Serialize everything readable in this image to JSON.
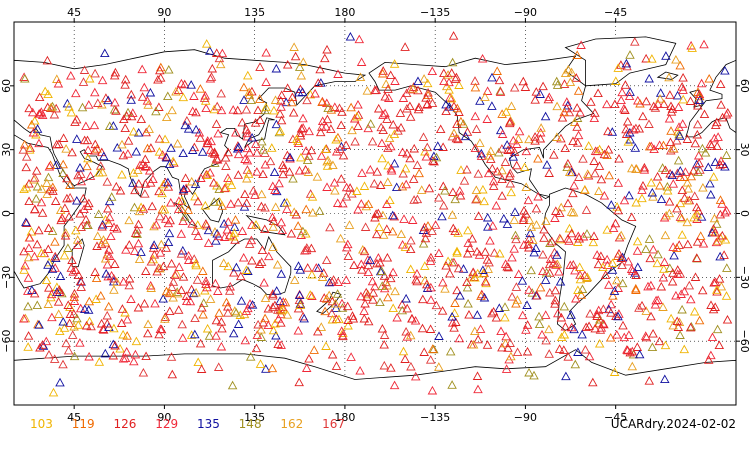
{
  "title": "UCARdry.2024-02-02",
  "map": {
    "projection": "cylindrical",
    "lon_center": 180,
    "lon_range": [
      15,
      375
    ],
    "lat_range": [
      -90,
      90
    ],
    "grid_lines": true,
    "land_fill": "#ffffff",
    "coastline_color": "#000000",
    "marker_shape": "triangle-outline"
  },
  "axes": {
    "top_ticks": [
      "45",
      "90",
      "135",
      "180",
      "−135",
      "−90",
      "−45"
    ],
    "top_tick_lons": [
      45,
      90,
      135,
      180,
      225,
      270,
      315
    ],
    "side_ticks": [
      "60",
      "30",
      "0",
      "−30",
      "−60"
    ],
    "side_tick_lats": [
      60,
      30,
      0,
      -30,
      -60
    ]
  },
  "legend": [
    {
      "label": "103",
      "color": "#f0b400"
    },
    {
      "label": "119",
      "color": "#f06a00"
    },
    {
      "label": "126",
      "color": "#e02020"
    },
    {
      "label": "129",
      "color": "#f02838"
    },
    {
      "label": "135",
      "color": "#1010a0"
    },
    {
      "label": "148",
      "color": "#a09020"
    },
    {
      "label": "162",
      "color": "#e8a020"
    },
    {
      "label": "167",
      "color": "#e03838"
    }
  ]
}
